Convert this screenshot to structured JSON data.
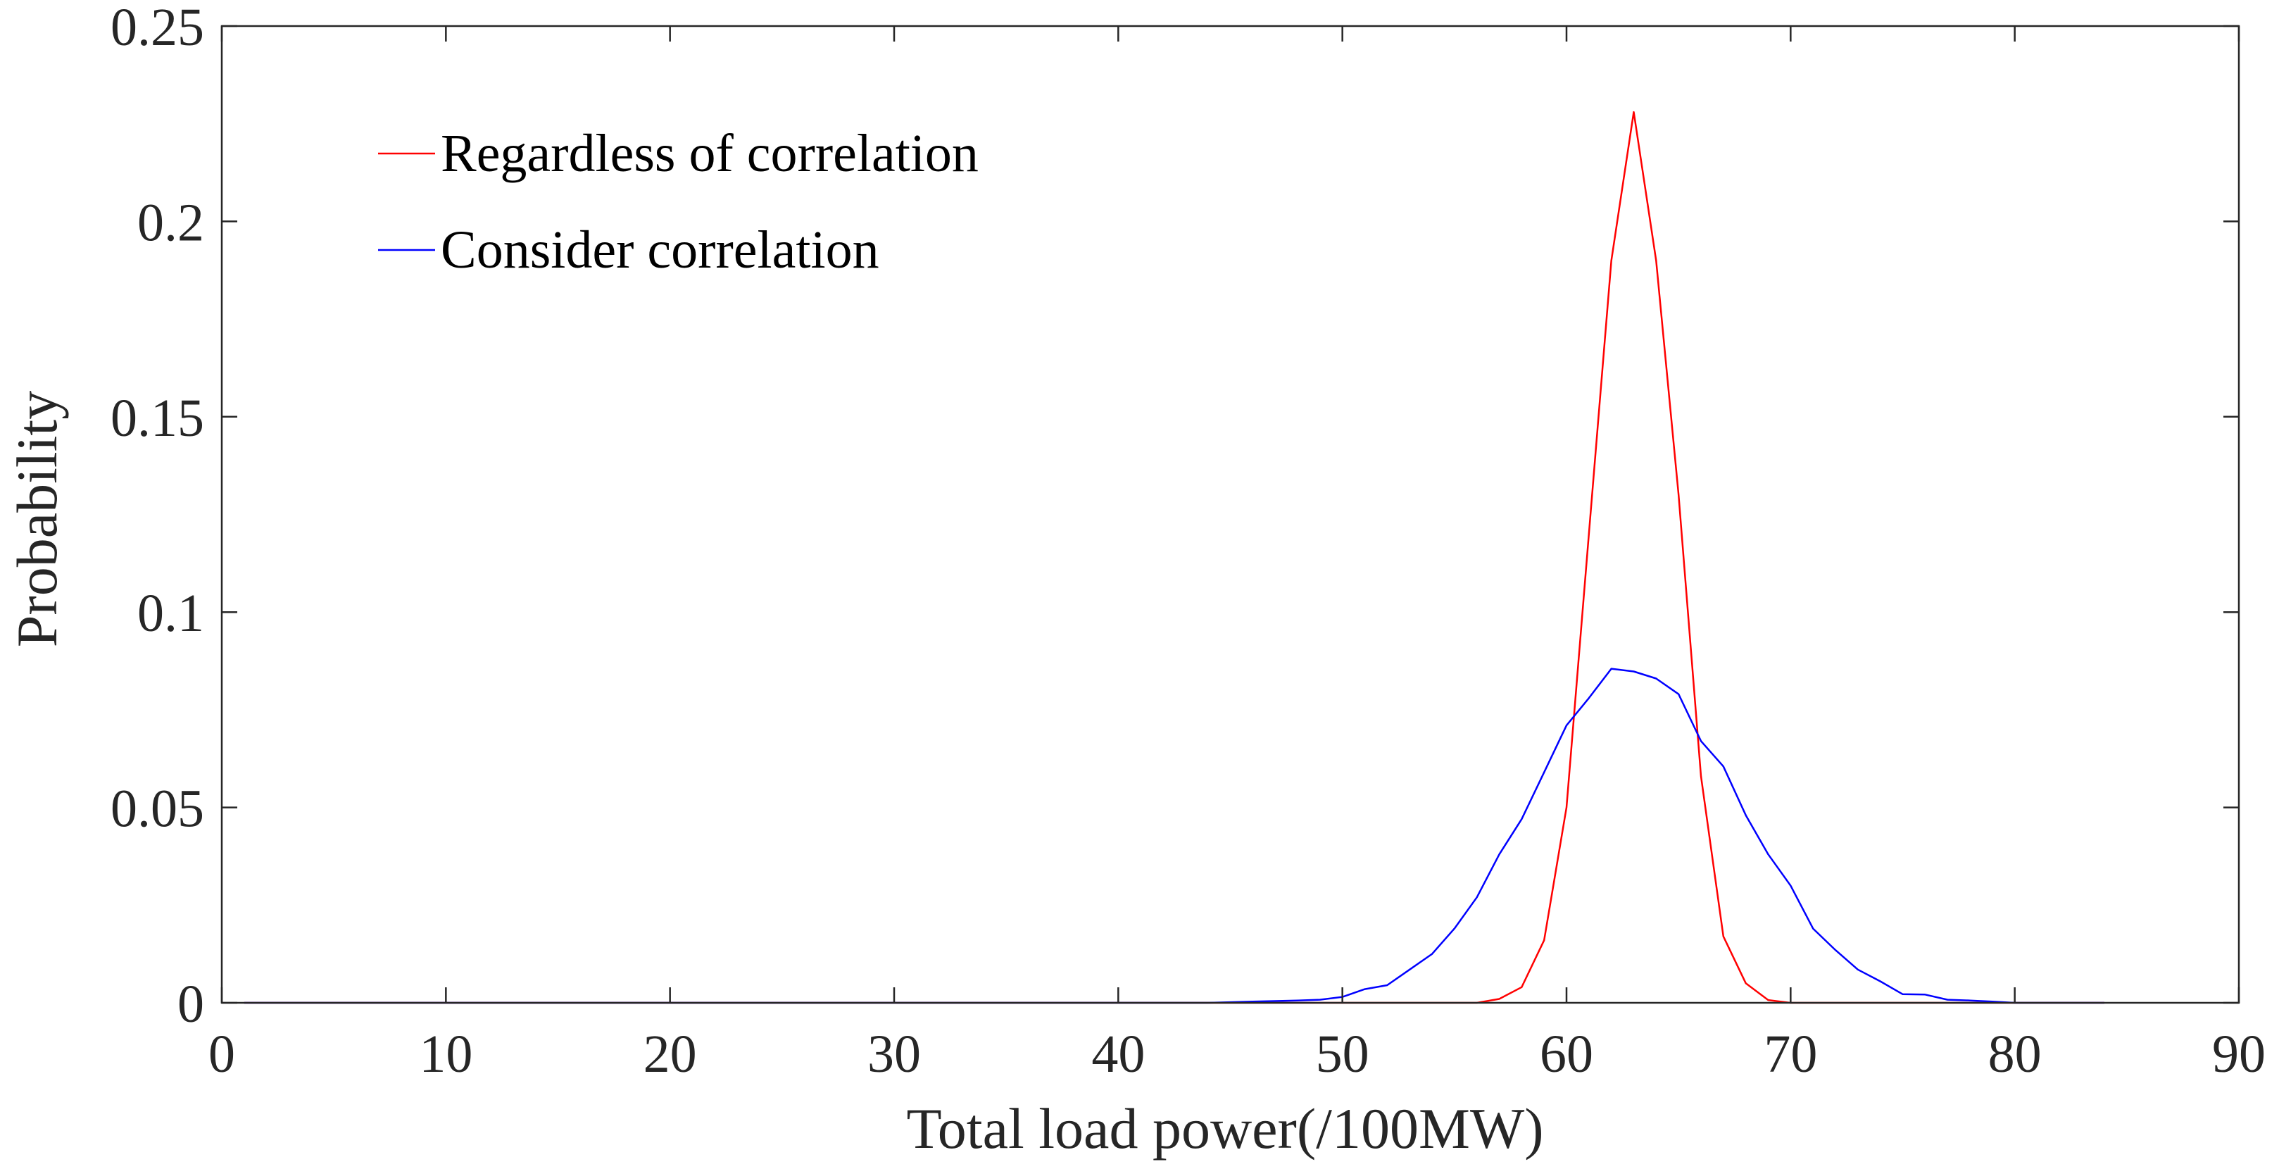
{
  "chart_data": {
    "type": "line",
    "title": "",
    "xlabel": "Total load power(/100MW)",
    "ylabel": "Probability",
    "xlim": [
      0,
      90
    ],
    "ylim": [
      0,
      0.25
    ],
    "xticks": [
      0,
      10,
      20,
      30,
      40,
      50,
      60,
      70,
      80,
      90
    ],
    "xtick_labels": [
      "0",
      "10",
      "20",
      "30",
      "40",
      "50",
      "60",
      "70",
      "80",
      "90"
    ],
    "yticks": [
      0,
      0.05,
      0.1,
      0.15,
      0.2,
      0.25
    ],
    "ytick_labels": [
      "0",
      "0.05",
      "0.1",
      "0.15",
      "0.2",
      "0.25"
    ],
    "grid": false,
    "legend_position": "top-left",
    "series": [
      {
        "name": "Regardless of correlation",
        "color": "#ff0000",
        "x": [
          1,
          50,
          55,
          56,
          57,
          58,
          59,
          60,
          61,
          62,
          63,
          64,
          65,
          66,
          67,
          68,
          69,
          70,
          84
        ],
        "y": [
          0,
          0,
          0,
          0,
          0.001,
          0.004,
          0.016,
          0.05,
          0.12,
          0.19,
          0.228,
          0.19,
          0.13,
          0.058,
          0.017,
          0.005,
          0.0007,
          0,
          0
        ]
      },
      {
        "name": "Consider correlation",
        "color": "#0000ff",
        "x": [
          1,
          44,
          46,
          48,
          49,
          50,
          51,
          52,
          53,
          54,
          55,
          56,
          57,
          58,
          59,
          60,
          61,
          62,
          63,
          64,
          65,
          66,
          67,
          68,
          69,
          70,
          71,
          72,
          73,
          74,
          75,
          76,
          77,
          78,
          79,
          80,
          84
        ],
        "y": [
          0,
          0,
          0.0003,
          0.0006,
          0.0008,
          0.0015,
          0.0035,
          0.0045,
          0.0085,
          0.0125,
          0.019,
          0.027,
          0.038,
          0.047,
          0.059,
          0.071,
          0.078,
          0.0855,
          0.0848,
          0.083,
          0.079,
          0.067,
          0.0605,
          0.048,
          0.038,
          0.03,
          0.019,
          0.0135,
          0.0085,
          0.0055,
          0.0022,
          0.0021,
          0.0008,
          0.0006,
          0.0003,
          0,
          0
        ]
      }
    ]
  }
}
